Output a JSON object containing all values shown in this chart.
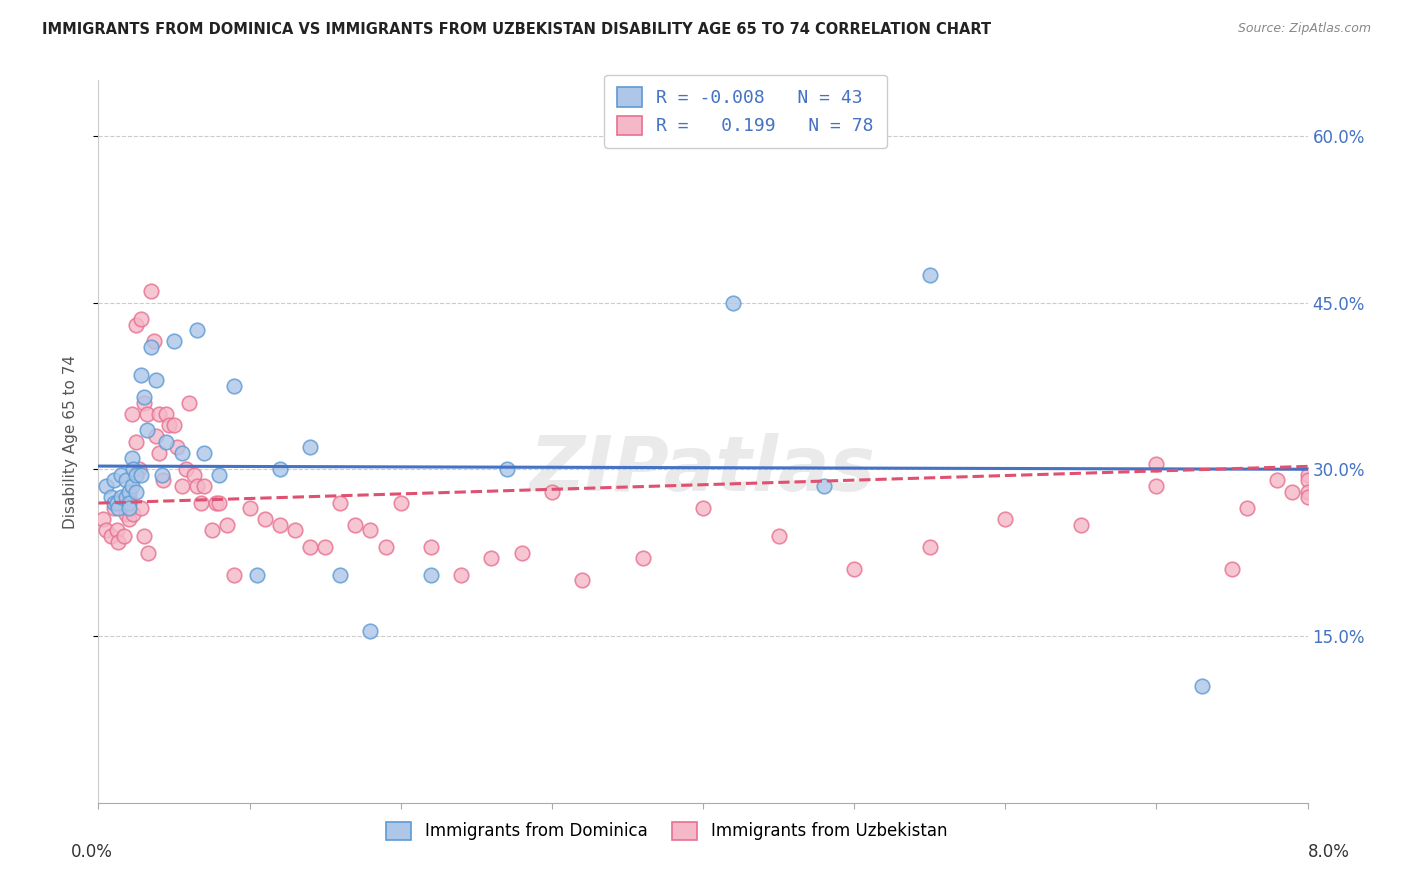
{
  "title": "IMMIGRANTS FROM DOMINICA VS IMMIGRANTS FROM UZBEKISTAN DISABILITY AGE 65 TO 74 CORRELATION CHART",
  "source": "Source: ZipAtlas.com",
  "ylabel": "Disability Age 65 to 74",
  "ytick_vals": [
    15.0,
    30.0,
    45.0,
    60.0
  ],
  "xlim": [
    0.0,
    8.0
  ],
  "ylim": [
    0.0,
    65.0
  ],
  "dominica_color": "#aec6e8",
  "uzbekistan_color": "#f4b8c8",
  "dominica_edge_color": "#5b9bd5",
  "uzbekistan_edge_color": "#e87090",
  "dominica_line_color": "#4472c4",
  "uzbekistan_line_color": "#e05070",
  "dominica_R": -0.008,
  "dominica_N": 43,
  "uzbekistan_R": 0.199,
  "uzbekistan_N": 78,
  "watermark": "ZIPatlas",
  "legend_label_dominica": "Immigrants from Dominica",
  "legend_label_uzbekistan": "Immigrants from Uzbekistan",
  "dominica_x": [
    0.05,
    0.08,
    0.1,
    0.1,
    0.12,
    0.13,
    0.15,
    0.15,
    0.18,
    0.18,
    0.2,
    0.2,
    0.2,
    0.22,
    0.22,
    0.23,
    0.25,
    0.25,
    0.28,
    0.28,
    0.3,
    0.32,
    0.35,
    0.38,
    0.42,
    0.45,
    0.5,
    0.55,
    0.65,
    0.7,
    0.8,
    0.9,
    1.05,
    1.2,
    1.4,
    1.6,
    1.8,
    2.2,
    2.7,
    4.2,
    4.8,
    5.5,
    7.3
  ],
  "dominica_y": [
    28.5,
    27.5,
    29.0,
    27.0,
    27.0,
    26.5,
    29.5,
    27.5,
    29.0,
    27.5,
    28.0,
    27.0,
    26.5,
    31.0,
    28.5,
    30.0,
    29.5,
    28.0,
    38.5,
    29.5,
    36.5,
    33.5,
    41.0,
    38.0,
    29.5,
    32.5,
    41.5,
    31.5,
    42.5,
    31.5,
    29.5,
    37.5,
    20.5,
    30.0,
    32.0,
    20.5,
    15.5,
    20.5,
    30.0,
    45.0,
    28.5,
    47.5,
    10.5
  ],
  "uzbekistan_x": [
    0.03,
    0.05,
    0.08,
    0.1,
    0.12,
    0.13,
    0.15,
    0.17,
    0.18,
    0.2,
    0.2,
    0.22,
    0.23,
    0.25,
    0.25,
    0.27,
    0.28,
    0.28,
    0.3,
    0.3,
    0.32,
    0.33,
    0.35,
    0.37,
    0.38,
    0.4,
    0.4,
    0.43,
    0.45,
    0.47,
    0.5,
    0.52,
    0.55,
    0.58,
    0.6,
    0.63,
    0.65,
    0.68,
    0.7,
    0.75,
    0.78,
    0.8,
    0.85,
    0.9,
    1.0,
    1.1,
    1.2,
    1.3,
    1.4,
    1.5,
    1.6,
    1.7,
    1.8,
    1.9,
    2.0,
    2.2,
    2.4,
    2.6,
    2.8,
    3.0,
    3.2,
    3.6,
    4.0,
    4.5,
    5.0,
    5.5,
    6.0,
    6.5,
    7.0,
    7.0,
    7.5,
    7.6,
    7.8,
    7.9,
    8.0,
    8.0,
    8.0,
    8.0
  ],
  "uzbekistan_y": [
    25.5,
    24.5,
    24.0,
    26.5,
    24.5,
    23.5,
    27.0,
    24.0,
    26.0,
    27.5,
    25.5,
    35.0,
    26.0,
    43.0,
    32.5,
    30.0,
    43.5,
    26.5,
    36.0,
    24.0,
    35.0,
    22.5,
    46.0,
    41.5,
    33.0,
    35.0,
    31.5,
    29.0,
    35.0,
    34.0,
    34.0,
    32.0,
    28.5,
    30.0,
    36.0,
    29.5,
    28.5,
    27.0,
    28.5,
    24.5,
    27.0,
    27.0,
    25.0,
    20.5,
    26.5,
    25.5,
    25.0,
    24.5,
    23.0,
    23.0,
    27.0,
    25.0,
    24.5,
    23.0,
    27.0,
    23.0,
    20.5,
    22.0,
    22.5,
    28.0,
    20.0,
    22.0,
    26.5,
    24.0,
    21.0,
    23.0,
    25.5,
    25.0,
    28.5,
    30.5,
    21.0,
    26.5,
    29.0,
    28.0,
    29.5,
    29.0,
    28.0,
    27.5
  ]
}
